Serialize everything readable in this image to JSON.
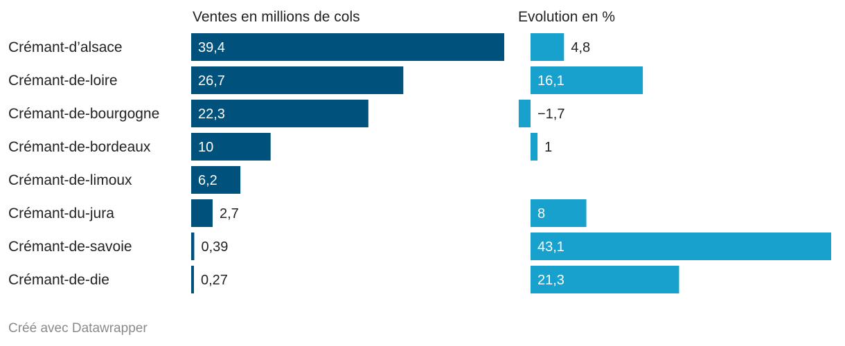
{
  "chart_data": {
    "type": "bar",
    "orientation": "horizontal",
    "categories": [
      "Crémant-d’alsace",
      "Crémant-de-loire",
      "Crémant-de-bourgogne",
      "Crémant-de-bordeaux",
      "Crémant-de-limoux",
      "Crémant-du-jura",
      "Crémant-de-savoie",
      "Crémant-de-die"
    ],
    "series": [
      {
        "name": "Ventes en millions de cols",
        "values": [
          39.4,
          26.7,
          22.3,
          10,
          6.2,
          2.7,
          0.39,
          0.27
        ],
        "labels": [
          "39,4",
          "26,7",
          "22,3",
          "10",
          "6,2",
          "2,7",
          "0,39",
          "0,27"
        ],
        "color": "#00527c",
        "xlim": [
          0,
          39.4
        ]
      },
      {
        "name": "Evolution en %",
        "values": [
          4.8,
          16.1,
          -1.7,
          1,
          null,
          8,
          43.1,
          21.3
        ],
        "labels": [
          "4,8",
          "16,1",
          "−1,7",
          "1",
          "",
          "8",
          "43,1",
          "21,3"
        ],
        "color": "#18a1cd",
        "xlim": [
          -1.7,
          43.1
        ]
      }
    ]
  },
  "footer": {
    "credit": "Créé avec Datawrapper"
  }
}
